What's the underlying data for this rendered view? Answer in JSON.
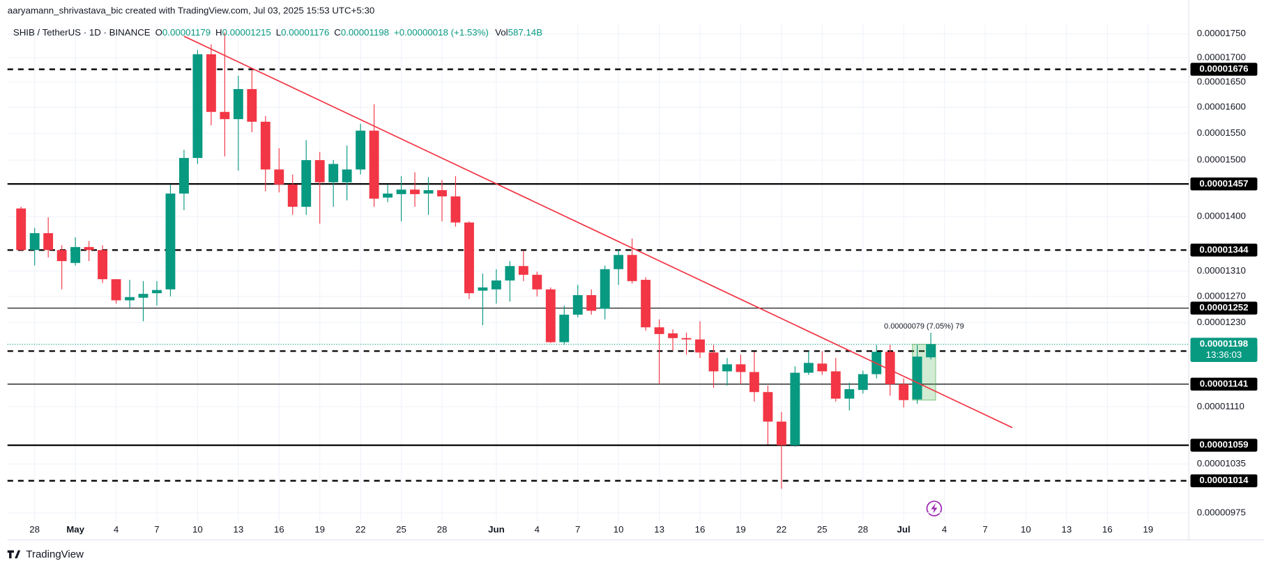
{
  "chart_data": {
    "type": "candlestick",
    "byline": "aaryamann_shrivastava_bic created with TradingView.com, Jul 03, 2025 15:53 UTC+5:30",
    "legend": {
      "symbol": "SHIB / TetherUS · 1D · BINANCE",
      "ohlc": [
        {
          "key": "O",
          "value": "0.00001179"
        },
        {
          "key": "H",
          "value": "0.00001215"
        },
        {
          "key": "L",
          "value": "0.00001176"
        },
        {
          "key": "C",
          "value": "0.00001198"
        }
      ],
      "change": "+0.00000018 (+1.53%)",
      "volume": {
        "key": "Vol",
        "value": "587.14B"
      }
    },
    "logo": "TradingView",
    "up_color": "#089981",
    "down_color": "#f23645",
    "log_scale": true,
    "grid": true,
    "xlim": [
      "2025-04-26",
      "2025-07-22"
    ],
    "ylim": [
      9.65e-06,
      1.771e-05
    ],
    "xticks": [
      {
        "value": "2025-04-28",
        "label": "28"
      },
      {
        "value": "2025-05-01",
        "label": "May"
      },
      {
        "value": "2025-05-04",
        "label": "4"
      },
      {
        "value": "2025-05-07",
        "label": "7"
      },
      {
        "value": "2025-05-10",
        "label": "10"
      },
      {
        "value": "2025-05-13",
        "label": "13"
      },
      {
        "value": "2025-05-16",
        "label": "16"
      },
      {
        "value": "2025-05-19",
        "label": "19"
      },
      {
        "value": "2025-05-22",
        "label": "22"
      },
      {
        "value": "2025-05-25",
        "label": "25"
      },
      {
        "value": "2025-05-28",
        "label": "28"
      },
      {
        "value": "2025-06-01",
        "label": "Jun"
      },
      {
        "value": "2025-06-04",
        "label": "4"
      },
      {
        "value": "2025-06-07",
        "label": "7"
      },
      {
        "value": "2025-06-10",
        "label": "10"
      },
      {
        "value": "2025-06-13",
        "label": "13"
      },
      {
        "value": "2025-06-16",
        "label": "16"
      },
      {
        "value": "2025-06-19",
        "label": "19"
      },
      {
        "value": "2025-06-22",
        "label": "22"
      },
      {
        "value": "2025-06-25",
        "label": "25"
      },
      {
        "value": "2025-06-28",
        "label": "28"
      },
      {
        "value": "2025-07-01",
        "label": "Jul"
      },
      {
        "value": "2025-07-04",
        "label": "4"
      },
      {
        "value": "2025-07-07",
        "label": "7"
      },
      {
        "value": "2025-07-10",
        "label": "10"
      },
      {
        "value": "2025-07-13",
        "label": "13"
      },
      {
        "value": "2025-07-16",
        "label": "16"
      },
      {
        "value": "2025-07-19",
        "label": "19"
      }
    ],
    "yticks": [
      {
        "value": 1.75e-05,
        "label": "0.00001750"
      },
      {
        "value": 1.7e-05,
        "label": "0.00001700"
      },
      {
        "value": 1.65e-05,
        "label": "0.00001650"
      },
      {
        "value": 1.6e-05,
        "label": "0.00001600"
      },
      {
        "value": 1.55e-05,
        "label": "0.00001550"
      },
      {
        "value": 1.5e-05,
        "label": "0.00001500"
      },
      {
        "value": 1.4e-05,
        "label": "0.00001400"
      },
      {
        "value": 1.31e-05,
        "label": "0.00001310"
      },
      {
        "value": 1.27e-05,
        "label": "0.00001270"
      },
      {
        "value": 1.23e-05,
        "label": "0.00001230"
      },
      {
        "value": 1.11e-05,
        "label": "0.00001110"
      },
      1.035e-05,
      9.75e-06
    ],
    "x": [
      "2025-04-27",
      "2025-04-28",
      "2025-04-29",
      "2025-04-30",
      "2025-05-01",
      "2025-05-02",
      "2025-05-03",
      "2025-05-04",
      "2025-05-05",
      "2025-05-06",
      "2025-05-07",
      "2025-05-08",
      "2025-05-09",
      "2025-05-10",
      "2025-05-11",
      "2025-05-12",
      "2025-05-13",
      "2025-05-14",
      "2025-05-15",
      "2025-05-16",
      "2025-05-17",
      "2025-05-18",
      "2025-05-19",
      "2025-05-20",
      "2025-05-21",
      "2025-05-22",
      "2025-05-23",
      "2025-05-24",
      "2025-05-25",
      "2025-05-26",
      "2025-05-27",
      "2025-05-28",
      "2025-05-29",
      "2025-05-30",
      "2025-05-31",
      "2025-06-01",
      "2025-06-02",
      "2025-06-03",
      "2025-06-04",
      "2025-06-05",
      "2025-06-06",
      "2025-06-07",
      "2025-06-08",
      "2025-06-09",
      "2025-06-10",
      "2025-06-11",
      "2025-06-12",
      "2025-06-13",
      "2025-06-14",
      "2025-06-15",
      "2025-06-16",
      "2025-06-17",
      "2025-06-18",
      "2025-06-19",
      "2025-06-20",
      "2025-06-21",
      "2025-06-22",
      "2025-06-23",
      "2025-06-24",
      "2025-06-25",
      "2025-06-26",
      "2025-06-27",
      "2025-06-28",
      "2025-06-29",
      "2025-06-30",
      "2025-07-01",
      "2025-07-02",
      "2025-07-03"
    ],
    "open": [
      1.414e-05,
      1.344e-05,
      1.372e-05,
      1.344e-05,
      1.323e-05,
      1.349e-05,
      1.344e-05,
      1.297e-05,
      1.264e-05,
      1.268e-05,
      1.275e-05,
      1.281e-05,
      1.44e-05,
      1.504e-05,
      1.707e-05,
      1.591e-05,
      1.577e-05,
      1.636e-05,
      1.572e-05,
      1.483e-05,
      1.456e-05,
      1.417e-05,
      1.5e-05,
      1.46e-05,
      1.46e-05,
      1.483e-05,
      1.555e-05,
      1.433e-05,
      1.439e-05,
      1.447e-05,
      1.44e-05,
      1.446e-05,
      1.435e-05,
      1.39e-05,
      1.279e-05,
      1.281e-05,
      1.295e-05,
      1.318e-05,
      1.304e-05,
      1.281e-05,
      1.201e-05,
      1.242e-05,
      1.272e-05,
      1.251e-05,
      1.313e-05,
      1.336e-05,
      1.296e-05,
      1.223e-05,
      1.214e-05,
      1.207e-05,
      1.205e-05,
      1.186e-05,
      1.159e-05,
      1.169e-05,
      1.158e-05,
      1.13e-05,
      1.09e-05,
      1.059e-05,
      1.157e-05,
      1.17e-05,
      1.159e-05,
      1.121e-05,
      1.133e-05,
      1.155e-05,
      1.187e-05,
      1.141e-05,
      1.12e-05,
      1.179e-05
    ],
    "high": [
      1.417e-05,
      1.381e-05,
      1.399e-05,
      1.352e-05,
      1.365e-05,
      1.359e-05,
      1.352e-05,
      1.297e-05,
      1.296e-05,
      1.294e-05,
      1.294e-05,
      1.456e-05,
      1.519e-05,
      1.716e-05,
      1.728e-05,
      1.753e-05,
      1.663e-05,
      1.675e-05,
      1.583e-05,
      1.522e-05,
      1.474e-05,
      1.537e-05,
      1.515e-05,
      1.5e-05,
      1.527e-05,
      1.568e-05,
      1.606e-05,
      1.456e-05,
      1.471e-05,
      1.478e-05,
      1.469e-05,
      1.464e-05,
      1.471e-05,
      1.392e-05,
      1.306e-05,
      1.313e-05,
      1.326e-05,
      1.343e-05,
      1.309e-05,
      1.284e-05,
      1.256e-05,
      1.288e-05,
      1.281e-05,
      1.319e-05,
      1.345e-05,
      1.363e-05,
      1.3e-05,
      1.235e-05,
      1.22e-05,
      1.215e-05,
      1.232e-05,
      1.197e-05,
      1.178e-05,
      1.183e-05,
      1.187e-05,
      1.139e-05,
      1.103e-05,
      1.166e-05,
      1.188e-05,
      1.188e-05,
      1.178e-05,
      1.143e-05,
      1.16e-05,
      1.197e-05,
      1.197e-05,
      1.149e-05,
      1.197e-05,
      1.215e-05
    ],
    "low": [
      1.342e-05,
      1.319e-05,
      1.332e-05,
      1.281e-05,
      1.319e-05,
      1.326e-05,
      1.291e-05,
      1.259e-05,
      1.253e-05,
      1.232e-05,
      1.256e-05,
      1.27e-05,
      1.411e-05,
      1.493e-05,
      1.565e-05,
      1.507e-05,
      1.481e-05,
      1.552e-05,
      1.444e-05,
      1.442e-05,
      1.403e-05,
      1.403e-05,
      1.388e-05,
      1.417e-05,
      1.428e-05,
      1.474e-05,
      1.417e-05,
      1.425e-05,
      1.392e-05,
      1.417e-05,
      1.403e-05,
      1.392e-05,
      1.383e-05,
      1.266e-05,
      1.226e-05,
      1.259e-05,
      1.262e-05,
      1.294e-05,
      1.27e-05,
      1.2e-05,
      1.197e-05,
      1.238e-05,
      1.242e-05,
      1.235e-05,
      1.288e-05,
      1.29e-05,
      1.218e-05,
      1.141e-05,
      1.189e-05,
      1.183e-05,
      1.178e-05,
      1.136e-05,
      1.139e-05,
      1.141e-05,
      1.117e-05,
      1.06e-05,
      1.004e-05,
      1.057e-05,
      1.154e-05,
      1.154e-05,
      1.117e-05,
      1.105e-05,
      1.128e-05,
      1.149e-05,
      1.125e-05,
      1.109e-05,
      1.114e-05,
      1.176e-05
    ],
    "close": [
      1.344e-05,
      1.372e-05,
      1.344e-05,
      1.326e-05,
      1.349e-05,
      1.344e-05,
      1.297e-05,
      1.264e-05,
      1.269e-05,
      1.274e-05,
      1.28e-05,
      1.44e-05,
      1.504e-05,
      1.707e-05,
      1.591e-05,
      1.577e-05,
      1.636e-05,
      1.572e-05,
      1.483e-05,
      1.456e-05,
      1.417e-05,
      1.5e-05,
      1.46e-05,
      1.493e-05,
      1.483e-05,
      1.555e-05,
      1.431e-05,
      1.44e-05,
      1.447e-05,
      1.439e-05,
      1.446e-05,
      1.435e-05,
      1.39e-05,
      1.275e-05,
      1.284e-05,
      1.295e-05,
      1.318e-05,
      1.304e-05,
      1.281e-05,
      1.201e-05,
      1.242e-05,
      1.272e-05,
      1.248e-05,
      1.313e-05,
      1.336e-05,
      1.294e-05,
      1.223e-05,
      1.213e-05,
      1.207e-05,
      1.205e-05,
      1.186e-05,
      1.159e-05,
      1.169e-05,
      1.158e-05,
      1.13e-05,
      1.09e-05,
      1.059e-05,
      1.157e-05,
      1.171e-05,
      1.159e-05,
      1.121e-05,
      1.134e-05,
      1.155e-05,
      1.187e-05,
      1.141e-05,
      1.119e-05,
      1.18e-05,
      1.198e-05
    ],
    "levels": [
      {
        "value": 1.676e-05,
        "style": "dashed",
        "weight": 2
      },
      {
        "value": 1.457e-05,
        "style": "solid",
        "weight": 2
      },
      {
        "value": 1.344e-05,
        "style": "dashed",
        "weight": 2
      },
      {
        "value": 1.252e-05,
        "style": "solid",
        "weight": 1
      },
      {
        "value": 1.188e-05,
        "style": "dashed",
        "weight": 2
      },
      {
        "value": 1.141e-05,
        "style": "solid",
        "weight": 1
      },
      {
        "value": 1.059e-05,
        "style": "solid",
        "weight": 2
      },
      {
        "value": 1.014e-05,
        "style": "dashed",
        "weight": 2
      }
    ],
    "level_color": "#000000",
    "last_price": {
      "value": 1.198e-05,
      "countdown": "13:36:03",
      "color": "#089981"
    },
    "trendline": {
      "color": "#f23645",
      "start": {
        "x": "2025-05-09",
        "y": 1.745e-05
      },
      "end": {
        "x": "2025-07-09",
        "y": 1.082e-05
      }
    },
    "measure": {
      "label": "0.00000079 (7.05%) 79",
      "from": 1.119e-05,
      "to": 1.198e-05,
      "start": "2025-07-02",
      "end": "2025-07-03",
      "color": "#4caf50"
    }
  }
}
